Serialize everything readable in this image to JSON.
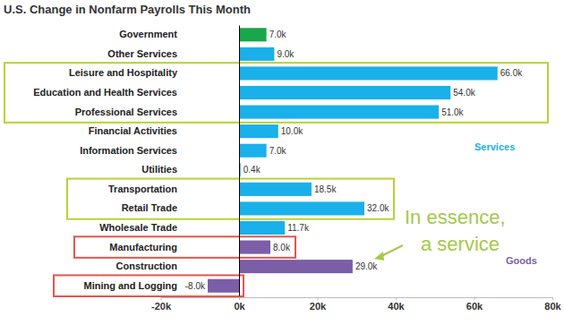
{
  "chart_data": {
    "type": "bar",
    "orientation": "horizontal",
    "title": "U.S. Change in Nonfarm Payrolls This Month",
    "categories": [
      "Government",
      "Other Services",
      "Leisure and Hospitality",
      "Education and Health Services",
      "Professional Services",
      "Financial Activities",
      "Information Services",
      "Utilities",
      "Transportation",
      "Retail Trade",
      "Wholesale Trade",
      "Manufacturing",
      "Construction",
      "Mining and Logging"
    ],
    "values": [
      7,
      9,
      66,
      54,
      51,
      10,
      7,
      0.4,
      18.5,
      32,
      11.7,
      8,
      29,
      -8
    ],
    "value_labels": [
      "7.0k",
      "9.0k",
      "66.0k",
      "54.0k",
      "51.0k",
      "10.0k",
      "7.0k",
      "0.4k",
      "18.5k",
      "32.0k",
      "11.7k",
      "8.0k",
      "29.0k",
      "-8.0k"
    ],
    "colors": [
      "#1aa64a",
      "#1ab0ea",
      "#1ab0ea",
      "#1ab0ea",
      "#1ab0ea",
      "#1ab0ea",
      "#1ab0ea",
      "#1ab0ea",
      "#1ab0ea",
      "#1ab0ea",
      "#1ab0ea",
      "#7b5ea7",
      "#7b5ea7",
      "#7b5ea7"
    ],
    "data_labels": true,
    "grid": false,
    "xlim": [
      -20,
      80
    ],
    "xticks": [
      {
        "value": -20,
        "label": "-20k"
      },
      {
        "value": 0,
        "label": "0k"
      },
      {
        "value": 20,
        "label": "20k"
      },
      {
        "value": 40,
        "label": "40k"
      },
      {
        "value": 60,
        "label": "60k"
      },
      {
        "value": 80,
        "label": "80k"
      }
    ],
    "annotations": [
      {
        "text": "Services",
        "color": "#1ab0ea"
      },
      {
        "text": "Goods",
        "color": "#7b5ea7"
      },
      {
        "text": "In essence, a service",
        "color": "#a6c84a"
      }
    ]
  }
}
